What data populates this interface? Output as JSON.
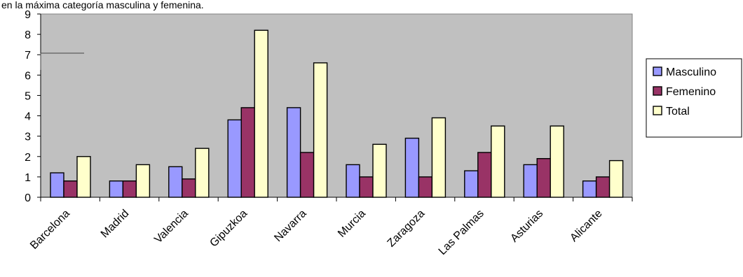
{
  "chart_data": {
    "type": "bar",
    "title": "en la máxima categoría masculina y femenina.",
    "categories": [
      "Barcelona",
      "Madrid",
      "Valencia",
      "Gipuzkoa",
      "Navarra",
      "Murcia",
      "Zaragoza",
      "Las Palmas",
      "Asturias",
      "Alicante"
    ],
    "series": [
      {
        "name": "Masculino",
        "color": "#9999ff",
        "values": [
          1.2,
          0.8,
          1.5,
          3.8,
          4.4,
          1.6,
          2.9,
          1.3,
          1.6,
          0.8
        ]
      },
      {
        "name": "Femenino",
        "color": "#993366",
        "values": [
          0.8,
          0.8,
          0.9,
          4.4,
          2.2,
          1.0,
          1.0,
          2.2,
          1.9,
          1.0
        ]
      },
      {
        "name": "Total",
        "color": "#ffffcc",
        "values": [
          2.0,
          1.6,
          2.4,
          8.2,
          6.6,
          2.6,
          3.9,
          3.5,
          3.5,
          1.8
        ]
      }
    ],
    "ylim": [
      0,
      9
    ],
    "yticks": [
      "0",
      "1",
      "2",
      "3",
      "4",
      "5",
      "6",
      "7",
      "8",
      "9"
    ],
    "plot_background": "#c0c0c0",
    "legend_position": "right",
    "grid": false
  }
}
